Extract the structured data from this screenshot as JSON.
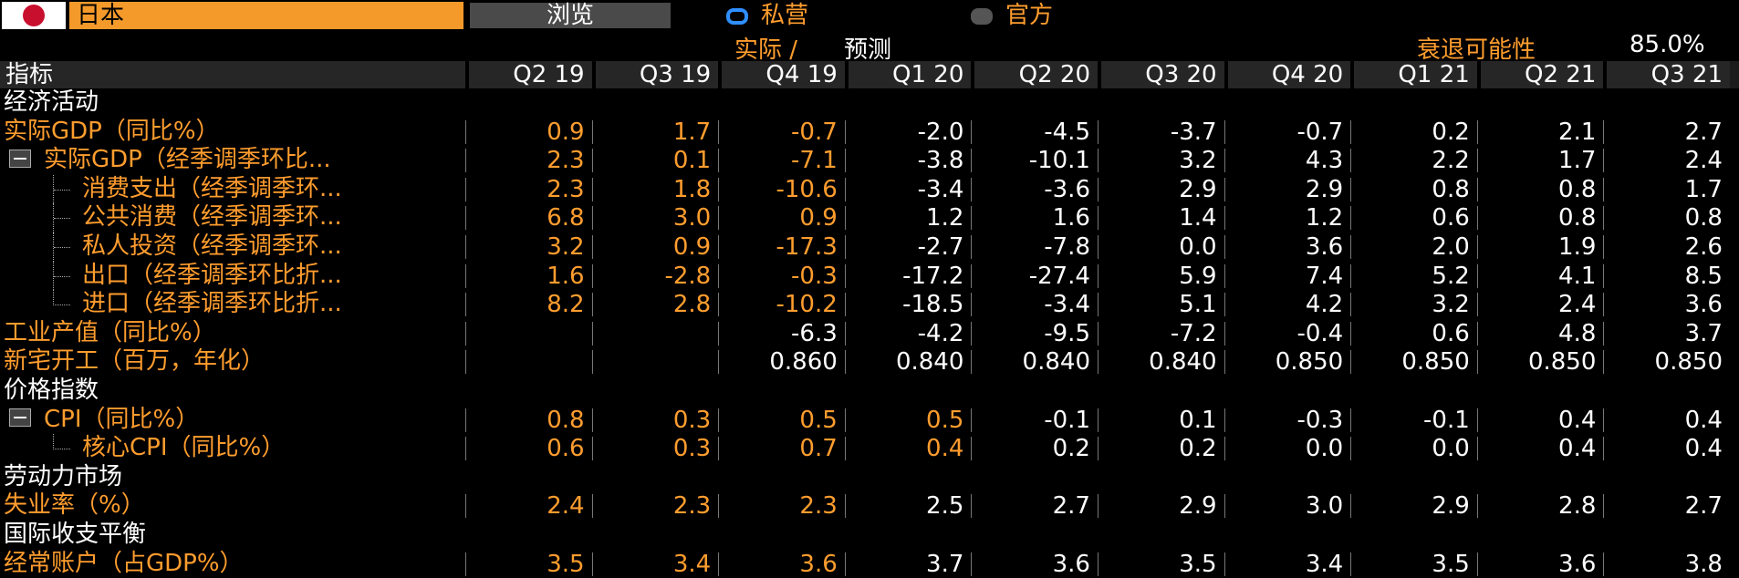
{
  "header": {
    "region": "日本",
    "browse": "浏览",
    "options": [
      "私营",
      "官方"
    ],
    "actual": "实际 /",
    "forecast": "预测",
    "recession_label": "衰退可能性",
    "recession_value": "85.0%"
  },
  "table": {
    "columns": [
      "指标",
      "Q2 19",
      "Q3 19",
      "Q4 19",
      "Q1 20",
      "Q2 20",
      "Q3 20",
      "Q4 20",
      "Q1 21",
      "Q2 21",
      "Q3 21"
    ],
    "rows": [
      {
        "label": "经济活动"
      },
      {
        "label": "实际GDP（同比%）",
        "values": [
          "0.9",
          "1.7",
          "-0.7",
          "-2.0",
          "-4.5",
          "-3.7",
          "-0.7",
          "0.2",
          "2.1",
          "2.7"
        ]
      },
      {
        "label": "实际GDP（经季调季环比...",
        "values": [
          "2.3",
          "0.1",
          "-7.1",
          "-3.8",
          "-10.1",
          "3.2",
          "4.3",
          "2.2",
          "1.7",
          "2.4"
        ]
      },
      {
        "label": "消费支出（经季调季环...",
        "values": [
          "2.3",
          "1.8",
          "-10.6",
          "-3.4",
          "-3.6",
          "2.9",
          "2.9",
          "0.8",
          "0.8",
          "1.7"
        ]
      },
      {
        "label": "公共消费（经季调季环...",
        "values": [
          "6.8",
          "3.0",
          "0.9",
          "1.2",
          "1.6",
          "1.4",
          "1.2",
          "0.6",
          "0.8",
          "0.8"
        ]
      },
      {
        "label": "私人投资（经季调季环...",
        "values": [
          "3.2",
          "0.9",
          "-17.3",
          "-2.7",
          "-7.8",
          "0.0",
          "3.6",
          "2.0",
          "1.9",
          "2.6"
        ]
      },
      {
        "label": "出口（经季调季环比折...",
        "values": [
          "1.6",
          "-2.8",
          "-0.3",
          "-17.2",
          "-27.4",
          "5.9",
          "7.4",
          "5.2",
          "4.1",
          "8.5"
        ]
      },
      {
        "label": "进口（经季调季环比折...",
        "values": [
          "8.2",
          "2.8",
          "-10.2",
          "-18.5",
          "-3.4",
          "5.1",
          "4.2",
          "3.2",
          "2.4",
          "3.6"
        ]
      },
      {
        "label": "工业产值（同比%）",
        "values": [
          null,
          null,
          "-6.3",
          "-4.2",
          "-9.5",
          "-7.2",
          "-0.4",
          "0.6",
          "4.8",
          "3.7"
        ]
      },
      {
        "label": "新宅开工（百万，年化）",
        "values": [
          null,
          null,
          "0.860",
          "0.840",
          "0.840",
          "0.840",
          "0.850",
          "0.850",
          "0.850",
          "0.850"
        ]
      },
      {
        "label": "价格指数"
      },
      {
        "label": "CPI（同比%）",
        "values": [
          "0.8",
          "0.3",
          "0.5",
          "0.5",
          "-0.1",
          "0.1",
          "-0.3",
          "-0.1",
          "0.4",
          "0.4"
        ]
      },
      {
        "label": "核心CPI（同比%）",
        "values": [
          "0.6",
          "0.3",
          "0.7",
          "0.4",
          "0.2",
          "0.2",
          "0.0",
          "0.0",
          "0.4",
          "0.4"
        ]
      },
      {
        "label": "劳动力市场"
      },
      {
        "label": "失业率（%）",
        "values": [
          "2.4",
          "2.3",
          "2.3",
          "2.5",
          "2.7",
          "2.9",
          "3.0",
          "2.9",
          "2.8",
          "2.7"
        ]
      },
      {
        "label": "国际收支平衡"
      },
      {
        "label": "经常账户（占GDP%）",
        "values": [
          "3.5",
          "3.4",
          "3.6",
          "3.7",
          "3.6",
          "3.5",
          "3.4",
          "3.5",
          "3.6",
          "3.8"
        ]
      }
    ]
  }
}
